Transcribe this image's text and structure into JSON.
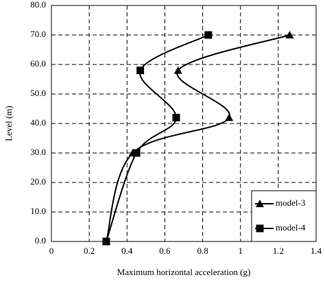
{
  "chart_data": {
    "type": "line",
    "x_label": "Maximum horizontal acceleration (g)",
    "y_label": "Level (m)",
    "xlim": [
      0,
      1.4
    ],
    "xticks": [
      0,
      0.2,
      0.4,
      0.6,
      0.8,
      1,
      1.2,
      1.4
    ],
    "ylim": [
      0,
      80
    ],
    "yticks": [
      {
        "value": 0,
        "label": "0.0"
      },
      {
        "value": 10,
        "label": "10.0"
      },
      {
        "value": 20,
        "label": "20.0"
      },
      {
        "value": 30,
        "label": "30.0"
      },
      {
        "value": 40,
        "label": "40.0"
      },
      {
        "value": 50,
        "label": "50.0"
      },
      {
        "value": 60,
        "label": "60.0"
      },
      {
        "value": 70,
        "label": "70.0"
      },
      {
        "value": 80,
        "label": "80.0"
      }
    ],
    "grid": true,
    "smooth": true,
    "legend": "lower right",
    "series": [
      {
        "name": "model-3",
        "color": "#000000",
        "marker": "triangle",
        "x": [
          0.29,
          0.43,
          0.94,
          0.67,
          1.26
        ],
        "values": [
          0,
          30,
          42,
          58,
          70
        ]
      },
      {
        "name": "model-4",
        "color": "#000000",
        "marker": "square",
        "x": [
          0.29,
          0.45,
          0.66,
          0.47,
          0.83
        ],
        "values": [
          0,
          30,
          42,
          58,
          70
        ]
      }
    ]
  }
}
